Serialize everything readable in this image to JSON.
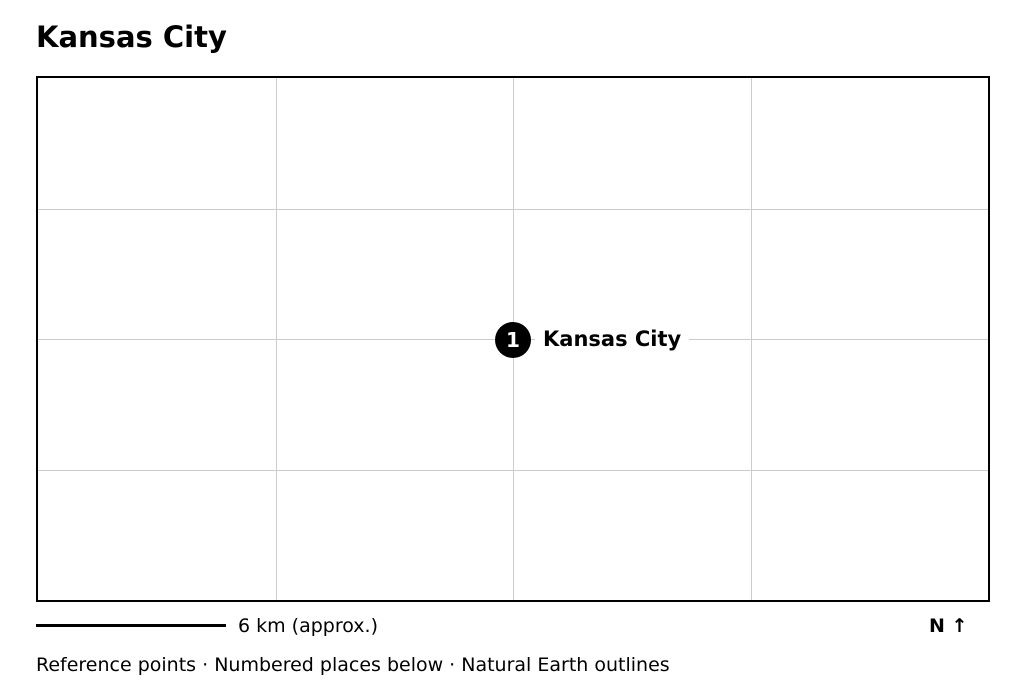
{
  "title": "Kansas City",
  "map": {
    "grid_columns": 4,
    "grid_rows": 4,
    "places": [
      {
        "number": "1",
        "name": "Kansas City"
      }
    ]
  },
  "scale": {
    "label": "6 km (approx.)"
  },
  "north_arrow": "N ↑",
  "footer": "Reference points · Numbered places below · Natural Earth outlines"
}
